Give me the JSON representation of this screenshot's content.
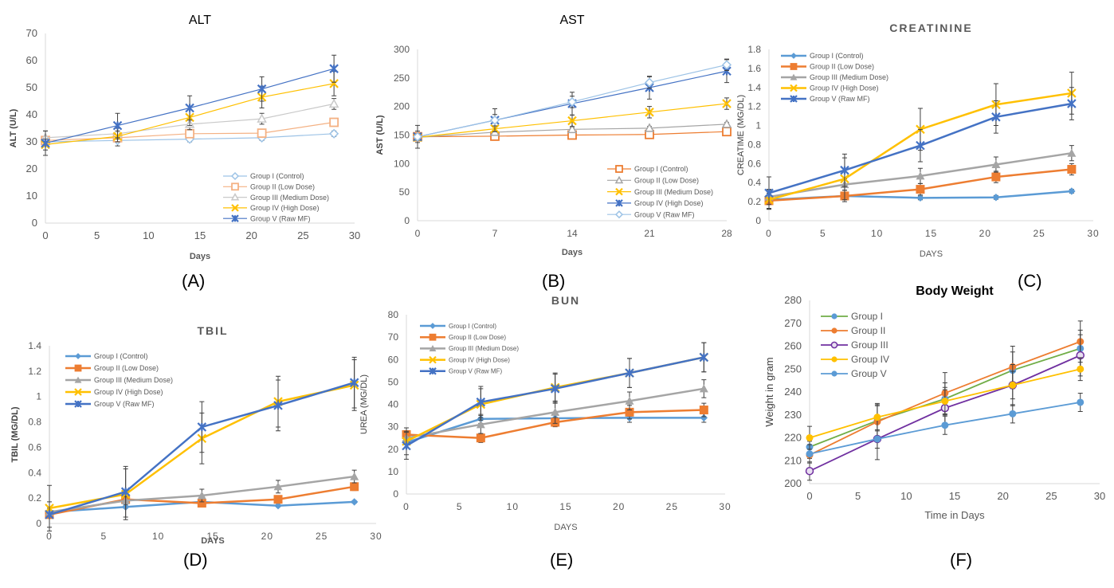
{
  "panel_labels": [
    "(A)",
    "(B)",
    "(C)",
    "(D)",
    "(E)",
    "(F)"
  ],
  "chart_data": [
    {
      "id": "A",
      "type": "line",
      "title": "ALT",
      "xlabel": "Days",
      "ylabel": "ALT (U/L)",
      "xlim": [
        0,
        30
      ],
      "ylim": [
        0,
        70
      ],
      "xticks": [
        0,
        5,
        10,
        15,
        20,
        25,
        30
      ],
      "yticks": [
        0,
        10,
        20,
        30,
        40,
        50,
        60,
        70
      ],
      "grid": false,
      "legend": "bottom-right",
      "x": [
        0,
        7,
        14,
        21,
        28
      ],
      "series": [
        {
          "name": "Group I (Control)",
          "color": "#9dc3e6",
          "marker": "diamond-open",
          "values": [
            30,
            30.5,
            31,
            31.5,
            33
          ],
          "err": [
            1.5,
            2,
            1,
            1,
            1
          ]
        },
        {
          "name": "Group II (Low Dose)",
          "color": "#f4b183",
          "marker": "square-open",
          "values": [
            30.5,
            31.5,
            33,
            33.2,
            37.2
          ],
          "err": [
            1.5,
            1,
            1,
            1,
            1
          ]
        },
        {
          "name": "Group III (Medium Dose)",
          "color": "#c9c9c9",
          "marker": "triangle-open",
          "values": [
            31.5,
            33,
            36.5,
            38.5,
            44
          ],
          "err": [
            2.5,
            2,
            2,
            2,
            2
          ]
        },
        {
          "name": "Group IV (High Dose)",
          "color": "#ffc000",
          "marker": "x",
          "values": [
            29,
            32,
            39,
            46.5,
            51.5
          ],
          "err": [
            2,
            2,
            3,
            4,
            4.5
          ]
        },
        {
          "name": "Group V (Raw MF)",
          "color": "#4472c4",
          "marker": "star",
          "values": [
            29.5,
            36,
            42.5,
            49.5,
            57
          ],
          "err": [
            4.5,
            4.5,
            4.5,
            4.5,
            5
          ]
        }
      ]
    },
    {
      "id": "B",
      "type": "line",
      "title": "AST",
      "xlabel": "Days",
      "ylabel": "AST (U/L)",
      "xlim": [
        0,
        28
      ],
      "ylim": [
        0,
        300
      ],
      "xticks": [
        0,
        7,
        14,
        21,
        28
      ],
      "yticks": [
        0,
        50,
        100,
        150,
        200,
        250,
        300
      ],
      "grid": false,
      "legend": "bottom-right",
      "x": [
        0,
        7,
        14,
        21,
        28
      ],
      "series": [
        {
          "name": "Group I (Control)",
          "color": "#ed7d31",
          "marker": "square-open",
          "values": [
            147,
            148,
            150,
            151,
            156
          ],
          "err": [
            3,
            3,
            3,
            3,
            3
          ]
        },
        {
          "name": "Group II (Low Dose)",
          "color": "#a5a5a5",
          "marker": "triangle-open",
          "values": [
            146,
            155,
            160,
            162,
            169
          ],
          "err": [
            3,
            3,
            3,
            3,
            3
          ]
        },
        {
          "name": "Group III (Medium Dose)",
          "color": "#ffc000",
          "marker": "x",
          "values": [
            146,
            161,
            175,
            190,
            205
          ],
          "err": [
            5,
            5,
            10,
            10,
            10
          ]
        },
        {
          "name": "Group IV (High Dose)",
          "color": "#4472c4",
          "marker": "star",
          "values": [
            147,
            176,
            205,
            233,
            262
          ],
          "err": [
            20,
            20,
            20,
            20,
            20
          ]
        },
        {
          "name": "Group V (Raw MF)",
          "color": "#9dc3e6",
          "marker": "diamond-open",
          "values": [
            147,
            176,
            208,
            242,
            273
          ],
          "err": [
            10,
            10,
            10,
            10,
            10
          ]
        }
      ]
    },
    {
      "id": "C",
      "type": "line",
      "title": "CREATININE",
      "xlabel": "DAYS",
      "ylabel": "CREATIME (MG/DL)",
      "xlim": [
        0,
        30
      ],
      "ylim": [
        0,
        1.8
      ],
      "xticks": [
        0,
        5,
        10,
        15,
        20,
        25,
        30
      ],
      "yticks": [
        0,
        0.2,
        0.4,
        0.6,
        0.8,
        1,
        1.2,
        1.4,
        1.6,
        1.8
      ],
      "grid": false,
      "legend": "top-left",
      "x": [
        0,
        7,
        14,
        21,
        28
      ],
      "series": [
        {
          "name": "Group I (Control)",
          "color": "#5b9bd5",
          "marker": "diamond",
          "values": [
            0.22,
            0.26,
            0.24,
            0.245,
            0.31
          ],
          "err": [
            0.02,
            0.02,
            0.02,
            0.02,
            0.02
          ]
        },
        {
          "name": "Group II (Low Dose)",
          "color": "#ed7d31",
          "marker": "square",
          "values": [
            0.21,
            0.26,
            0.33,
            0.46,
            0.54
          ],
          "err": [
            0.08,
            0.06,
            0.06,
            0.06,
            0.06
          ]
        },
        {
          "name": "Group III (Medium Dose)",
          "color": "#a5a5a5",
          "marker": "triangle",
          "values": [
            0.25,
            0.38,
            0.47,
            0.59,
            0.71
          ],
          "err": [
            0.08,
            0.06,
            0.08,
            0.08,
            0.08
          ]
        },
        {
          "name": "Group IV (High Dose)",
          "color": "#ffc000",
          "marker": "x",
          "values": [
            0.22,
            0.44,
            0.96,
            1.22,
            1.34
          ],
          "err": [
            0.1,
            0.22,
            0.22,
            0.22,
            0.22
          ]
        },
        {
          "name": "Group V (Raw MF)",
          "color": "#4472c4",
          "marker": "star",
          "values": [
            0.29,
            0.53,
            0.79,
            1.09,
            1.23
          ],
          "err": [
            0.17,
            0.17,
            0.17,
            0.17,
            0.17
          ]
        }
      ]
    },
    {
      "id": "D",
      "type": "line",
      "title": "TBIL",
      "xlabel": "DAYS",
      "ylabel": "TBIL (MG/DL)",
      "xlim": [
        0,
        30
      ],
      "ylim": [
        0,
        1.4
      ],
      "xticks": [
        0,
        5,
        10,
        15,
        20,
        25,
        30
      ],
      "yticks": [
        0,
        0.2,
        0.4,
        0.6,
        0.8,
        1,
        1.2,
        1.4
      ],
      "grid": false,
      "legend": "top-left",
      "x": [
        0,
        7,
        14,
        21,
        28
      ],
      "series": [
        {
          "name": "Group I (Control)",
          "color": "#5b9bd5",
          "marker": "diamond",
          "values": [
            0.09,
            0.13,
            0.17,
            0.14,
            0.17
          ],
          "err": [
            0.01,
            0.01,
            0.01,
            0.01,
            0.01
          ]
        },
        {
          "name": "Group II (Low Dose)",
          "color": "#ed7d31",
          "marker": "square",
          "values": [
            0.07,
            0.19,
            0.16,
            0.19,
            0.29
          ],
          "err": [
            0.02,
            0.03,
            0.02,
            0.03,
            0.03
          ]
        },
        {
          "name": "Group III (Medium Dose)",
          "color": "#a5a5a5",
          "marker": "triangle",
          "values": [
            0.09,
            0.18,
            0.22,
            0.29,
            0.37
          ],
          "err": [
            0.03,
            0.03,
            0.05,
            0.05,
            0.05
          ]
        },
        {
          "name": "Group IV (High Dose)",
          "color": "#ffc000",
          "marker": "x",
          "values": [
            0.12,
            0.23,
            0.67,
            0.96,
            1.09
          ],
          "err": [
            0.18,
            0.2,
            0.2,
            0.2,
            0.2
          ]
        },
        {
          "name": "Group V (Raw MF)",
          "color": "#4472c4",
          "marker": "star",
          "values": [
            0.07,
            0.25,
            0.76,
            0.93,
            1.11
          ],
          "err": [
            0.1,
            0.2,
            0.2,
            0.2,
            0.2
          ]
        }
      ]
    },
    {
      "id": "E",
      "type": "line",
      "title": "BUN",
      "xlabel": "DAYS",
      "ylabel": "UREA (MG/DL)",
      "xlim": [
        0,
        30
      ],
      "ylim": [
        0,
        80
      ],
      "xticks": [
        0,
        5,
        10,
        15,
        20,
        25,
        30
      ],
      "yticks": [
        0,
        10,
        20,
        30,
        40,
        50,
        60,
        70,
        80
      ],
      "grid": false,
      "legend": "top-left",
      "x": [
        0,
        7,
        14,
        21,
        28
      ],
      "series": [
        {
          "name": "Group I (Control)",
          "color": "#5b9bd5",
          "marker": "diamond",
          "values": [
            23,
            33.5,
            33.8,
            34,
            34
          ],
          "err": [
            2,
            2,
            2,
            2,
            2
          ]
        },
        {
          "name": "Group II (Low Dose)",
          "color": "#ed7d31",
          "marker": "square",
          "values": [
            26.5,
            25,
            32,
            36.5,
            37.5
          ],
          "err": [
            3,
            2,
            2,
            3,
            3
          ]
        },
        {
          "name": "Group III (Medium Dose)",
          "color": "#a5a5a5",
          "marker": "triangle",
          "values": [
            25,
            31,
            36.5,
            41.5,
            47
          ],
          "err": [
            3,
            4,
            5,
            4,
            4
          ]
        },
        {
          "name": "Group IV (High Dose)",
          "color": "#ffc000",
          "marker": "x",
          "values": [
            23.5,
            40,
            47.5,
            54,
            61
          ],
          "err": [
            6,
            7,
            6.5,
            6.5,
            6.5
          ]
        },
        {
          "name": "Group V (Raw MF)",
          "color": "#4472c4",
          "marker": "star",
          "values": [
            21.5,
            41,
            47,
            54,
            61
          ],
          "err": [
            6,
            7,
            6.5,
            6.5,
            6.5
          ]
        }
      ]
    },
    {
      "id": "F",
      "type": "line",
      "title": "Body Weight",
      "xlabel": "Time in Days",
      "ylabel": "Weight in gram",
      "xlim": [
        0,
        30
      ],
      "ylim": [
        200,
        280
      ],
      "xticks": [
        0,
        5,
        10,
        15,
        20,
        25,
        30
      ],
      "yticks": [
        200,
        210,
        220,
        230,
        240,
        250,
        260,
        270,
        280
      ],
      "grid": false,
      "legend": "top-left",
      "x": [
        0,
        7,
        14,
        21,
        28
      ],
      "series": [
        {
          "name": "Group I",
          "color": "#70ad47",
          "marker": "circle",
          "markerFill": "#5b9bd5",
          "values": [
            216,
            227.5,
            237,
            249.5,
            259
          ],
          "err": [
            5,
            7,
            7,
            8,
            8
          ]
        },
        {
          "name": "Group II",
          "color": "#ed7d31",
          "marker": "circle",
          "values": [
            212.5,
            227,
            239.5,
            251,
            262
          ],
          "err": [
            6,
            7,
            9,
            9,
            9
          ]
        },
        {
          "name": "Group III",
          "color": "#7030a0",
          "marker": "circle-open",
          "values": [
            205.5,
            219.5,
            233,
            243,
            256
          ],
          "err": [
            4,
            9,
            8,
            9,
            9
          ]
        },
        {
          "name": "Group IV",
          "color": "#ffc000",
          "marker": "circle",
          "values": [
            220,
            229,
            236,
            243,
            250
          ],
          "err": [
            5,
            6,
            6,
            6,
            5
          ]
        },
        {
          "name": "Group V",
          "color": "#5b9bd5",
          "marker": "circle",
          "values": [
            213,
            219.5,
            225.5,
            230.5,
            235.5
          ],
          "err": [
            4,
            4,
            4,
            4,
            4
          ]
        }
      ]
    }
  ]
}
